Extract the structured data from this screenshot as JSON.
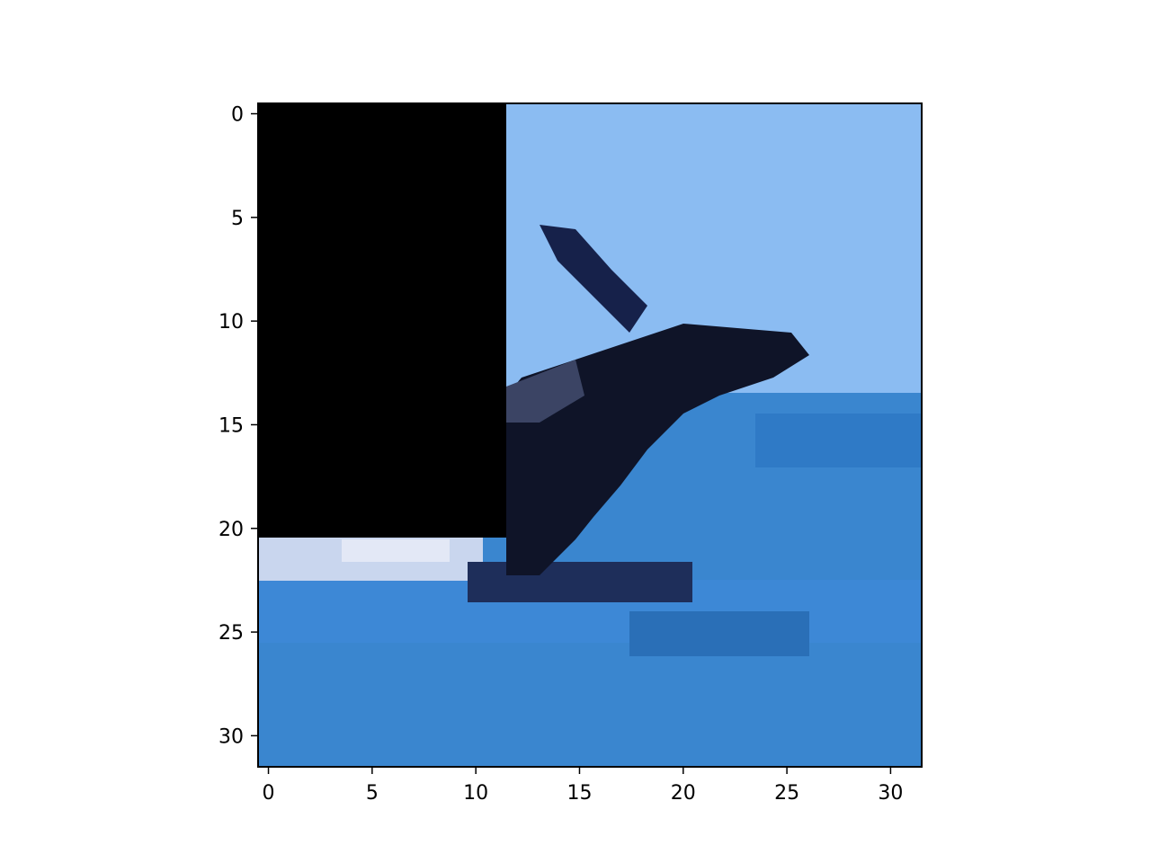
{
  "figure": {
    "kind": "imshow",
    "description_visible": "low-resolution 32x32 pixel image: sky, dark bird/jet silhouette, ocean water, with a masked black rectangle in the top-left",
    "grid_size": [
      32,
      32
    ],
    "mask": {
      "color": "#000000",
      "cols": [
        0,
        11
      ],
      "rows": [
        0,
        20
      ]
    },
    "colors": {
      "sky": "#8bbcf2",
      "water": "#3a86cf",
      "dark": "#0f1428",
      "foam": "#c9d6ee"
    }
  },
  "axes": {
    "x_ticks": [
      "0",
      "5",
      "10",
      "15",
      "20",
      "25",
      "30"
    ],
    "y_ticks": [
      "0",
      "5",
      "10",
      "15",
      "20",
      "25",
      "30"
    ]
  }
}
